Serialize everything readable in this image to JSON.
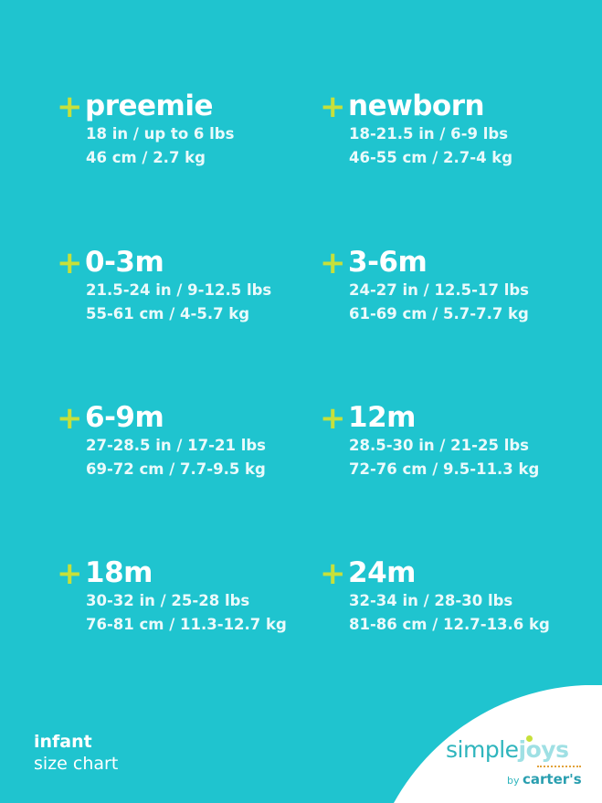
{
  "sizes": [
    {
      "title": "preemie",
      "imperial": "18 in / up to 6 lbs",
      "metric": "46 cm / 2.7 kg"
    },
    {
      "title": "newborn",
      "imperial": "18-21.5 in / 6-9 lbs",
      "metric": "46-55 cm / 2.7-4 kg"
    },
    {
      "title": "0-3m",
      "imperial": "21.5-24 in / 9-12.5 lbs",
      "metric": "55-61 cm / 4-5.7 kg"
    },
    {
      "title": "3-6m",
      "imperial": "24-27 in / 12.5-17 lbs",
      "metric": "61-69 cm / 5.7-7.7 kg"
    },
    {
      "title": "6-9m",
      "imperial": "27-28.5 in / 17-21 lbs",
      "metric": "69-72 cm / 7.7-9.5 kg"
    },
    {
      "title": "12m",
      "imperial": "28.5-30 in / 21-25 lbs",
      "metric": "72-76 cm / 9.5-11.3 kg"
    },
    {
      "title": "18m",
      "imperial": "30-32 in / 25-28 lbs",
      "metric": "76-81 cm / 11.3-12.7 kg"
    },
    {
      "title": "24m",
      "imperial": "32-34 in / 28-30 lbs",
      "metric": "81-86 cm / 12.7-13.6 kg"
    }
  ],
  "plus_symbol": "+",
  "footer": {
    "line1": "infant",
    "line2": "size chart"
  },
  "logo": {
    "simple": "simple",
    "joys": "joys",
    "by": "by",
    "brand": "carter's"
  },
  "colors": {
    "background": "#1fc4cf",
    "accent": "#c7e03a",
    "text": "#ffffff"
  }
}
